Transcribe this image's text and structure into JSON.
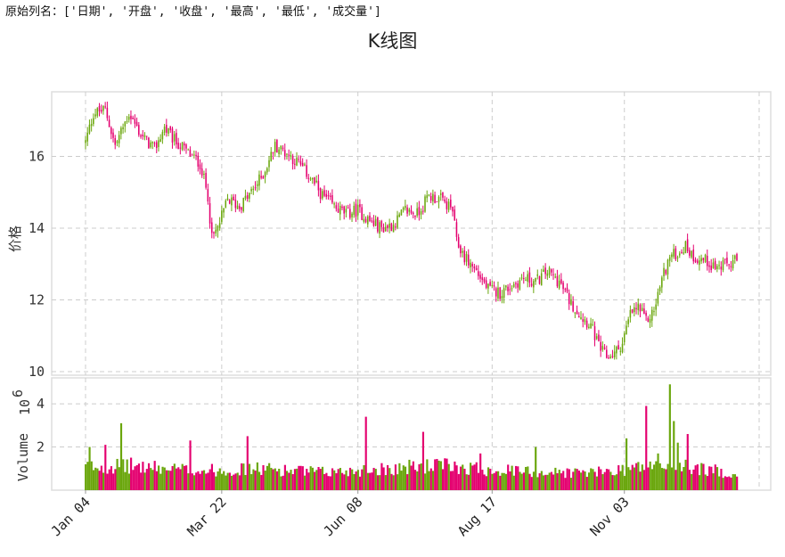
{
  "header": {
    "text": "原始列名：['日期', '开盘', '收盘', '最高', '最低', '成交量']"
  },
  "chart_data": {
    "type": "candlestick",
    "title": "K线图",
    "price_panel": {
      "ylabel": "价格",
      "yticks": [
        "10",
        "12",
        "14",
        "16"
      ],
      "ylim": [
        9.9,
        17.8
      ]
    },
    "volume_panel": {
      "ylabel": "Volume",
      "exponent_label": "10",
      "exponent_power": "6",
      "yticks": [
        "2",
        "4"
      ],
      "ylim": [
        0,
        5.2
      ]
    },
    "xticks": [
      "Jan 04",
      "Mar 22",
      "Jun 08",
      "Aug 17",
      "Nov 03"
    ],
    "grid": true,
    "colors": {
      "up": "#6aa60c",
      "down": "#e4006f",
      "grid": "#cccccc",
      "frame": "#dddddd"
    },
    "close_path": [
      [
        0,
        16.4
      ],
      [
        4,
        17.2
      ],
      [
        10,
        17.3
      ],
      [
        15,
        16.3
      ],
      [
        22,
        17.2
      ],
      [
        28,
        16.6
      ],
      [
        35,
        16.2
      ],
      [
        40,
        16.8
      ],
      [
        44,
        16.5
      ],
      [
        52,
        16.1
      ],
      [
        58,
        15.8
      ],
      [
        62,
        14.9
      ],
      [
        64,
        13.7
      ],
      [
        67,
        14.0
      ],
      [
        72,
        14.8
      ],
      [
        78,
        14.6
      ],
      [
        84,
        15.0
      ],
      [
        90,
        15.5
      ],
      [
        96,
        16.3
      ],
      [
        102,
        16.1
      ],
      [
        108,
        15.8
      ],
      [
        114,
        15.4
      ],
      [
        120,
        14.9
      ],
      [
        126,
        14.6
      ],
      [
        132,
        14.4
      ],
      [
        138,
        14.5
      ],
      [
        144,
        14.2
      ],
      [
        150,
        14.0
      ],
      [
        156,
        14.1
      ],
      [
        162,
        14.5
      ],
      [
        168,
        14.4
      ],
      [
        174,
        14.9
      ],
      [
        180,
        14.8
      ],
      [
        186,
        14.5
      ],
      [
        188,
        13.6
      ],
      [
        192,
        13.2
      ],
      [
        198,
        12.8
      ],
      [
        204,
        12.3
      ],
      [
        210,
        12.2
      ],
      [
        216,
        12.4
      ],
      [
        222,
        12.6
      ],
      [
        228,
        12.5
      ],
      [
        234,
        12.8
      ],
      [
        240,
        12.5
      ],
      [
        246,
        11.9
      ],
      [
        252,
        11.5
      ],
      [
        256,
        11.3
      ],
      [
        260,
        10.7
      ],
      [
        264,
        10.4
      ],
      [
        268,
        10.5
      ],
      [
        272,
        10.8
      ],
      [
        276,
        11.6
      ],
      [
        280,
        11.8
      ],
      [
        284,
        11.4
      ],
      [
        288,
        11.7
      ],
      [
        292,
        12.6
      ],
      [
        296,
        13.2
      ],
      [
        300,
        13.3
      ],
      [
        304,
        13.5
      ],
      [
        308,
        13.2
      ],
      [
        314,
        13.1
      ],
      [
        320,
        12.9
      ],
      [
        326,
        13.0
      ],
      [
        330,
        13.1
      ]
    ],
    "volume_profile": [
      [
        0,
        1.3
      ],
      [
        20,
        1.4
      ],
      [
        40,
        1.2
      ],
      [
        60,
        1.1
      ],
      [
        90,
        1.2
      ],
      [
        120,
        1.0
      ],
      [
        150,
        1.2
      ],
      [
        180,
        1.4
      ],
      [
        200,
        1.2
      ],
      [
        230,
        1.0
      ],
      [
        260,
        1.0
      ],
      [
        280,
        1.3
      ],
      [
        300,
        1.4
      ],
      [
        330,
        0.9
      ]
    ],
    "volume_spikes": [
      [
        2,
        2.0
      ],
      [
        10,
        2.1
      ],
      [
        18,
        3.1
      ],
      [
        53,
        2.3
      ],
      [
        82,
        2.5
      ],
      [
        142,
        3.4
      ],
      [
        171,
        2.7
      ],
      [
        200,
        1.7
      ],
      [
        228,
        2.0
      ],
      [
        274,
        2.4
      ],
      [
        284,
        3.9
      ],
      [
        290,
        1.7
      ],
      [
        296,
        4.9
      ],
      [
        298,
        3.2
      ],
      [
        300,
        2.2
      ],
      [
        305,
        2.6
      ]
    ]
  }
}
